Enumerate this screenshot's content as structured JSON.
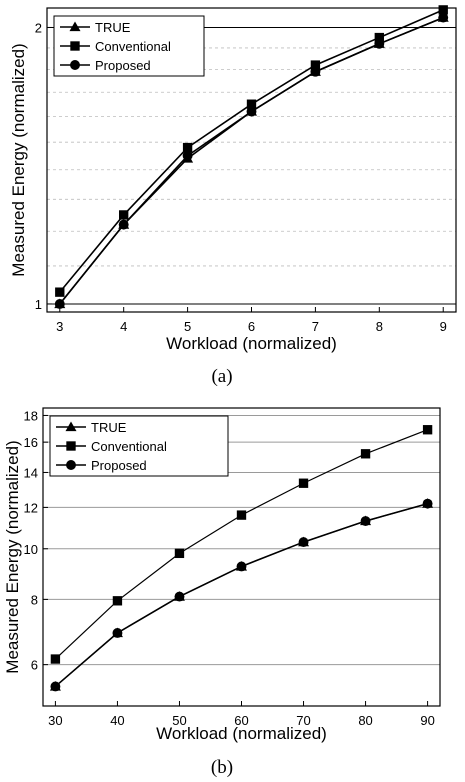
{
  "chart_data": [
    {
      "type": "line",
      "xlabel": "Workload (normalized)",
      "ylabel": "Measured Energy (normalized)",
      "caption": "(a)",
      "x": [
        3,
        4,
        5,
        6,
        7,
        8,
        9
      ],
      "xlim": [
        2.8,
        9.2
      ],
      "ylim": [
        0.98,
        2.1
      ],
      "y_scale": "log",
      "y_ticks": [
        1,
        2
      ],
      "x_ticks": [
        3,
        4,
        5,
        6,
        7,
        8,
        9
      ],
      "grid": "horizontal, dashed minor lines",
      "legend": "top-left",
      "series": [
        {
          "name": "TRUE",
          "marker": "triangle",
          "values": [
            1.0,
            1.22,
            1.44,
            1.62,
            1.79,
            1.92,
            2.05
          ]
        },
        {
          "name": "Conventional",
          "marker": "square",
          "values": [
            1.03,
            1.25,
            1.48,
            1.65,
            1.82,
            1.95,
            2.09
          ]
        },
        {
          "name": "Proposed",
          "marker": "circle",
          "values": [
            1.0,
            1.22,
            1.45,
            1.62,
            1.79,
            1.92,
            2.05
          ]
        }
      ]
    },
    {
      "type": "line",
      "xlabel": "Workload (normalized)",
      "ylabel": "Measured Energy (normalized)",
      "caption": "(b)",
      "x": [
        30,
        40,
        50,
        60,
        70,
        80,
        90
      ],
      "xlim": [
        28,
        92
      ],
      "ylim": [
        5.0,
        18.6
      ],
      "y_scale": "log",
      "y_ticks": [
        6,
        8,
        10,
        12,
        14,
        16,
        18
      ],
      "x_ticks": [
        30,
        40,
        50,
        60,
        70,
        80,
        90
      ],
      "grid": "horizontal",
      "legend": "top-left",
      "series": [
        {
          "name": "TRUE",
          "marker": "triangle",
          "values": [
            5.45,
            6.9,
            8.1,
            9.25,
            10.3,
            11.3,
            12.2
          ]
        },
        {
          "name": "Conventional",
          "marker": "square",
          "values": [
            6.15,
            7.95,
            9.8,
            11.6,
            13.35,
            15.2,
            16.9
          ]
        },
        {
          "name": "Proposed",
          "marker": "circle",
          "values": [
            5.45,
            6.9,
            8.1,
            9.25,
            10.3,
            11.3,
            12.2
          ]
        }
      ]
    }
  ]
}
